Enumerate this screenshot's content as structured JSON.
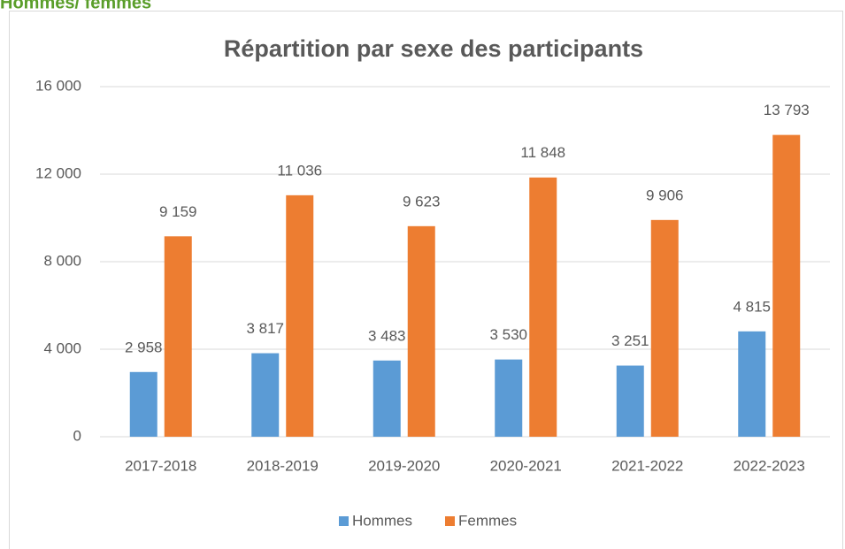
{
  "heading": "Hommes/ femmes",
  "chart_data": {
    "type": "bar",
    "title": "Répartition par sexe des participants",
    "categories": [
      "2017-2018",
      "2018-2019",
      "2019-2020",
      "2020-2021",
      "2021-2022",
      "2022-2023"
    ],
    "series": [
      {
        "name": "Hommes",
        "color": "#5b9bd5",
        "values": [
          2958,
          3817,
          3483,
          3530,
          3251,
          4815
        ],
        "value_labels": [
          "2 958",
          "3 817",
          "3 483",
          "3 530",
          "3 251",
          "4 815"
        ]
      },
      {
        "name": "Femmes",
        "color": "#ed7d31",
        "values": [
          9159,
          11036,
          9623,
          11848,
          9906,
          13793
        ],
        "value_labels": [
          "9 159",
          "11 036",
          "9 623",
          "11 848",
          "9 906",
          "13 793"
        ]
      }
    ],
    "ylim": [
      0,
      16000
    ],
    "yticks": [
      0,
      {
        "value": 4000,
        "label": "4 000"
      },
      {
        "value": 8000,
        "label": "8 000"
      },
      {
        "value": 12000,
        "label": "12 000"
      },
      {
        "value": 16000,
        "label": "16 000"
      }
    ],
    "grid": true,
    "legend": "bottom"
  }
}
